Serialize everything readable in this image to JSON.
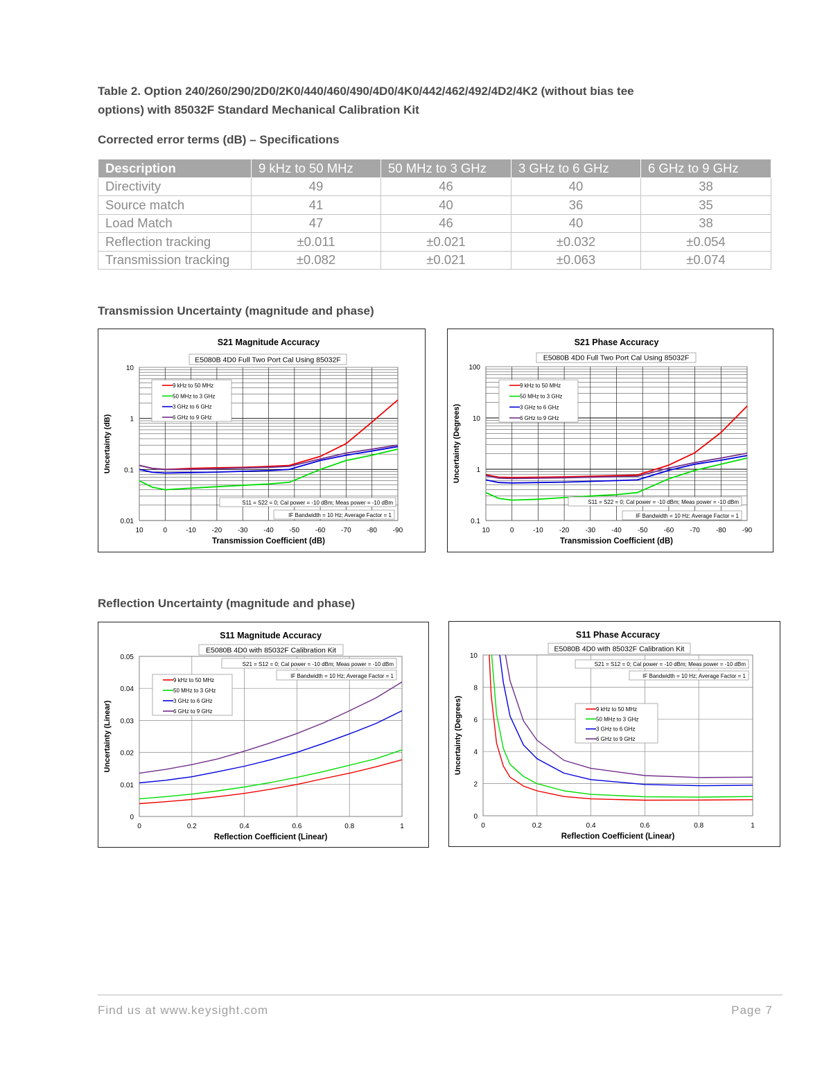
{
  "heading": {
    "table_title_line1": "Table 2. Option 240/260/290/2D0/2K0/440/460/490/4D0/4K0/442/462/492/4D2/4K2 (without bias tee",
    "table_title_line2": "options) with 85032F Standard Mechanical Calibration Kit",
    "subtitle": "Corrected error terms (dB) – Specifications"
  },
  "table": {
    "headers": [
      "Description",
      "9 kHz to 50 MHz",
      "50 MHz to 3 GHz",
      "3 GHz to 6 GHz",
      "6 GHz to 9 GHz"
    ],
    "rows": [
      [
        "Directivity",
        "49",
        "46",
        "40",
        "38"
      ],
      [
        "Source match",
        "41",
        "40",
        "36",
        "35"
      ],
      [
        "Load Match",
        "47",
        "46",
        "40",
        "38"
      ],
      [
        "Reflection tracking",
        "±0.011",
        "±0.021",
        "±0.032",
        "±0.054"
      ],
      [
        "Transmission tracking",
        "±0.082",
        "±0.021",
        "±0.063",
        "±0.074"
      ]
    ],
    "header_color": "#a6a6a6"
  },
  "sections": {
    "transmission": "Transmission Uncertainty (magnitude and phase)",
    "reflection": "Reflection Uncertainty (magnitude and phase)"
  },
  "footer": {
    "left": "Find us at www.keysight.com",
    "right": "Page 7"
  },
  "series_colors": [
    "#ee0000",
    "#00dd00",
    "#0000dd",
    "#702f8a"
  ],
  "chart_data": [
    {
      "type": "line",
      "title": "S21 Magnitude Accuracy",
      "subtitle": "E5080B 4D0 Full Two Port Cal Using 85032F",
      "notes": [
        "S11 = S22 = 0; Cal power = -10 dBm; Meas power = -10 dBm",
        "IF Bandwidth = 10 Hz; Average Factor = 1"
      ],
      "xlabel": "Transmission Coefficient (dB)",
      "ylabel": "Uncertainty (dB)",
      "xlim": [
        10,
        -90
      ],
      "ylim": [
        0.01,
        10
      ],
      "yscale": "log",
      "grid": true,
      "legend": "top-left",
      "xticks": [
        "10",
        "0",
        "-10",
        "-20",
        "-30",
        "-40",
        "-50",
        "-60",
        "-70",
        "-80",
        "-90"
      ],
      "yticks": [
        "0.01",
        "0.1",
        "1",
        "10"
      ],
      "series": [
        {
          "name": "9 kHz to 50 MHz",
          "points": [
            [
              10,
              0.12
            ],
            [
              5,
              0.105
            ],
            [
              0,
              0.1
            ],
            [
              -10,
              0.105
            ],
            [
              -20,
              0.108
            ],
            [
              -30,
              0.11
            ],
            [
              -40,
              0.115
            ],
            [
              -48,
              0.12
            ],
            [
              -60,
              0.18
            ],
            [
              -70,
              0.32
            ],
            [
              -80,
              0.85
            ],
            [
              -90,
              2.3
            ]
          ]
        },
        {
          "name": "50 MHz to 3 GHz",
          "points": [
            [
              10,
              0.06
            ],
            [
              5,
              0.045
            ],
            [
              0,
              0.04
            ],
            [
              -10,
              0.043
            ],
            [
              -20,
              0.046
            ],
            [
              -30,
              0.049
            ],
            [
              -40,
              0.052
            ],
            [
              -48,
              0.056
            ],
            [
              -60,
              0.1
            ],
            [
              -70,
              0.15
            ],
            [
              -80,
              0.19
            ],
            [
              -90,
              0.25
            ]
          ]
        },
        {
          "name": "3 GHz to 6 GHz",
          "points": [
            [
              10,
              0.1
            ],
            [
              5,
              0.088
            ],
            [
              0,
              0.085
            ],
            [
              -10,
              0.087
            ],
            [
              -20,
              0.089
            ],
            [
              -30,
              0.092
            ],
            [
              -40,
              0.095
            ],
            [
              -48,
              0.1
            ],
            [
              -60,
              0.15
            ],
            [
              -70,
              0.19
            ],
            [
              -80,
              0.23
            ],
            [
              -90,
              0.28
            ]
          ]
        },
        {
          "name": "6 GHz to 9 GHz",
          "points": [
            [
              10,
              0.12
            ],
            [
              5,
              0.105
            ],
            [
              0,
              0.1
            ],
            [
              -10,
              0.1
            ],
            [
              -20,
              0.103
            ],
            [
              -30,
              0.107
            ],
            [
              -40,
              0.11
            ],
            [
              -48,
              0.115
            ],
            [
              -60,
              0.16
            ],
            [
              -70,
              0.21
            ],
            [
              -80,
              0.25
            ],
            [
              -90,
              0.3
            ]
          ]
        }
      ]
    },
    {
      "type": "line",
      "title": "S21 Phase Accuracy",
      "subtitle": "E5080B 4D0 Full Two Port Cal Using 85032F",
      "notes": [
        "S11 = S22 = 0; Cal power = -10 dBm; Meas power = -10 dBm",
        "IF Bandwidth = 10 Hz; Average Factor = 1"
      ],
      "xlabel": "Transmission Coefficient (dB)",
      "ylabel": "Uncertainty (Degrees)",
      "xlim": [
        10,
        -90
      ],
      "ylim": [
        0.1,
        100
      ],
      "yscale": "log",
      "grid": true,
      "legend": "top-left",
      "xticks": [
        "10",
        "0",
        "-10",
        "-20",
        "-30",
        "-40",
        "-50",
        "-60",
        "-70",
        "-80",
        "-90"
      ],
      "yticks": [
        "0.1",
        "1",
        "10",
        "100"
      ],
      "series": [
        {
          "name": "9 kHz to 50 MHz",
          "points": [
            [
              10,
              0.78
            ],
            [
              5,
              0.7
            ],
            [
              0,
              0.69
            ],
            [
              -10,
              0.7
            ],
            [
              -20,
              0.71
            ],
            [
              -30,
              0.73
            ],
            [
              -40,
              0.75
            ],
            [
              -48,
              0.77
            ],
            [
              -60,
              1.2
            ],
            [
              -70,
              2.1
            ],
            [
              -80,
              5.2
            ],
            [
              -90,
              17
            ]
          ]
        },
        {
          "name": "50 MHz to 3 GHz",
          "points": [
            [
              10,
              0.35
            ],
            [
              5,
              0.27
            ],
            [
              0,
              0.25
            ],
            [
              -10,
              0.26
            ],
            [
              -20,
              0.28
            ],
            [
              -30,
              0.3
            ],
            [
              -40,
              0.32
            ],
            [
              -48,
              0.35
            ],
            [
              -60,
              0.65
            ],
            [
              -70,
              0.95
            ],
            [
              -80,
              1.25
            ],
            [
              -90,
              1.65
            ]
          ]
        },
        {
          "name": "3 GHz to 6 GHz",
          "points": [
            [
              10,
              0.62
            ],
            [
              5,
              0.55
            ],
            [
              0,
              0.54
            ],
            [
              -10,
              0.55
            ],
            [
              -20,
              0.56
            ],
            [
              -30,
              0.58
            ],
            [
              -40,
              0.6
            ],
            [
              -48,
              0.62
            ],
            [
              -60,
              0.95
            ],
            [
              -70,
              1.25
            ],
            [
              -80,
              1.5
            ],
            [
              -90,
              1.85
            ]
          ]
        },
        {
          "name": "6 GHz to 9 GHz",
          "points": [
            [
              10,
              0.75
            ],
            [
              5,
              0.67
            ],
            [
              0,
              0.66
            ],
            [
              -10,
              0.67
            ],
            [
              -20,
              0.68
            ],
            [
              -30,
              0.7
            ],
            [
              -40,
              0.72
            ],
            [
              -48,
              0.73
            ],
            [
              -60,
              1.05
            ],
            [
              -70,
              1.35
            ],
            [
              -80,
              1.65
            ],
            [
              -90,
              2.05
            ]
          ]
        }
      ]
    },
    {
      "type": "line",
      "title": "S11 Magnitude Accuracy",
      "subtitle": "E5080B 4D0 with 85032F Calibration  Kit",
      "notes": [
        "S21 = S12 = 0; Cal power = -10 dBm; Meas power = -10 dBm",
        "IF Bandwidth = 10 Hz; Average Factor = 1"
      ],
      "xlabel": "Reflection Coefficient (Linear)",
      "ylabel": "Uncertainty (Linear)",
      "xlim": [
        0,
        1
      ],
      "ylim": [
        0,
        0.05
      ],
      "yscale": "linear",
      "grid": true,
      "legend": "top-left",
      "xticks": [
        "0",
        "0.2",
        "0.4",
        "0.6",
        "0.8",
        "1"
      ],
      "yticks": [
        "0",
        "0.01",
        "0.02",
        "0.03",
        "0.04",
        "0.05"
      ],
      "series": [
        {
          "name": "9 kHz to 50 MHz",
          "points": [
            [
              0,
              0.004
            ],
            [
              0.1,
              0.0046
            ],
            [
              0.2,
              0.0053
            ],
            [
              0.3,
              0.0062
            ],
            [
              0.4,
              0.0072
            ],
            [
              0.5,
              0.0085
            ],
            [
              0.6,
              0.01
            ],
            [
              0.7,
              0.0118
            ],
            [
              0.8,
              0.0135
            ],
            [
              0.9,
              0.0155
            ],
            [
              1,
              0.0177
            ]
          ]
        },
        {
          "name": "50 MHz to 3 GHz",
          "points": [
            [
              0,
              0.0055
            ],
            [
              0.1,
              0.0062
            ],
            [
              0.2,
              0.007
            ],
            [
              0.3,
              0.008
            ],
            [
              0.4,
              0.0092
            ],
            [
              0.5,
              0.0106
            ],
            [
              0.6,
              0.0122
            ],
            [
              0.7,
              0.014
            ],
            [
              0.8,
              0.016
            ],
            [
              0.9,
              0.018
            ],
            [
              1,
              0.0208
            ]
          ]
        },
        {
          "name": "3 GHz to 6 GHz",
          "points": [
            [
              0,
              0.0105
            ],
            [
              0.1,
              0.0113
            ],
            [
              0.2,
              0.0124
            ],
            [
              0.3,
              0.014
            ],
            [
              0.4,
              0.0157
            ],
            [
              0.5,
              0.0177
            ],
            [
              0.6,
              0.02
            ],
            [
              0.7,
              0.0228
            ],
            [
              0.8,
              0.0258
            ],
            [
              0.9,
              0.029
            ],
            [
              1,
              0.033
            ]
          ]
        },
        {
          "name": "6 GHz to 9 GHz",
          "points": [
            [
              0,
              0.0135
            ],
            [
              0.1,
              0.0147
            ],
            [
              0.2,
              0.0162
            ],
            [
              0.3,
              0.018
            ],
            [
              0.4,
              0.0204
            ],
            [
              0.5,
              0.023
            ],
            [
              0.6,
              0.0259
            ],
            [
              0.7,
              0.0292
            ],
            [
              0.8,
              0.033
            ],
            [
              0.9,
              0.037
            ],
            [
              1,
              0.042
            ]
          ]
        }
      ]
    },
    {
      "type": "line",
      "title": "S11 Phase Accuracy",
      "subtitle": "E5080B 4D0 with 85032F  Calibration  Kit",
      "notes": [
        "S21 = S12 = 0; Cal power = -10 dBm; Meas power = -10 dBm",
        "IF Bandwidth = 10 Hz; Average Factor = 1"
      ],
      "xlabel": "Reflection Coefficient (Linear)",
      "ylabel": "Uncertainty (Degrees)",
      "xlim": [
        0,
        1
      ],
      "ylim": [
        0,
        10
      ],
      "yscale": "linear",
      "grid": true,
      "legend": "center",
      "xticks": [
        "0",
        "0.2",
        "0.4",
        "0.6",
        "0.8",
        "1"
      ],
      "yticks": [
        "0",
        "2",
        "4",
        "6",
        "8",
        "10"
      ],
      "series": [
        {
          "name": "9 kHz to 50 MHz",
          "points": [
            [
              0.023,
              10
            ],
            [
              0.03,
              7.5
            ],
            [
              0.05,
              4.5
            ],
            [
              0.075,
              3.1
            ],
            [
              0.1,
              2.4
            ],
            [
              0.15,
              1.85
            ],
            [
              0.2,
              1.55
            ],
            [
              0.3,
              1.2
            ],
            [
              0.4,
              1.05
            ],
            [
              0.6,
              0.97
            ],
            [
              0.8,
              0.98
            ],
            [
              1,
              1.0
            ]
          ]
        },
        {
          "name": "50 MHz to 3 GHz",
          "points": [
            [
              0.032,
              10
            ],
            [
              0.05,
              6.3
            ],
            [
              0.075,
              4.2
            ],
            [
              0.1,
              3.2
            ],
            [
              0.15,
              2.45
            ],
            [
              0.2,
              2.0
            ],
            [
              0.3,
              1.55
            ],
            [
              0.4,
              1.33
            ],
            [
              0.6,
              1.18
            ],
            [
              0.8,
              1.16
            ],
            [
              1,
              1.2
            ]
          ]
        },
        {
          "name": "3 GHz to 6 GHz",
          "points": [
            [
              0.062,
              10
            ],
            [
              0.075,
              8.3
            ],
            [
              0.1,
              6.2
            ],
            [
              0.15,
              4.4
            ],
            [
              0.2,
              3.55
            ],
            [
              0.3,
              2.65
            ],
            [
              0.4,
              2.25
            ],
            [
              0.6,
              1.95
            ],
            [
              0.8,
              1.87
            ],
            [
              1,
              1.9
            ]
          ]
        },
        {
          "name": "6 GHz to 9 GHz",
          "points": [
            [
              0.083,
              10
            ],
            [
              0.1,
              8.4
            ],
            [
              0.15,
              5.9
            ],
            [
              0.2,
              4.7
            ],
            [
              0.3,
              3.45
            ],
            [
              0.4,
              2.95
            ],
            [
              0.6,
              2.5
            ],
            [
              0.8,
              2.38
            ],
            [
              1,
              2.4
            ]
          ]
        }
      ]
    }
  ]
}
